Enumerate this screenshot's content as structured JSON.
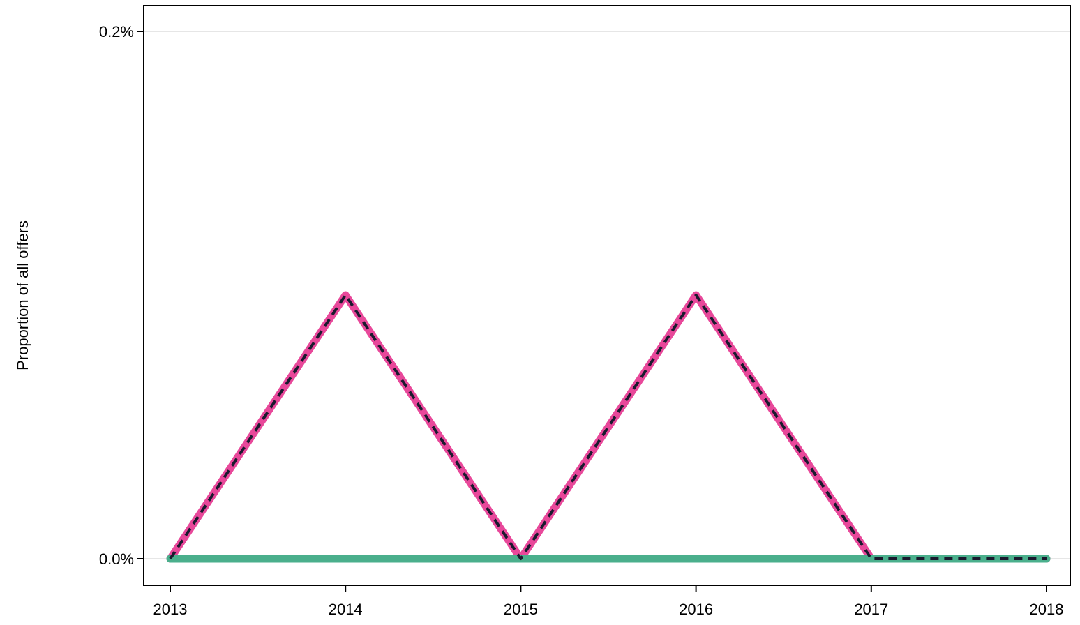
{
  "chart_data": {
    "type": "line",
    "title": "",
    "xlabel": "",
    "ylabel": "Proportion of all offers",
    "x": [
      2013,
      2014,
      2015,
      2016,
      2017,
      2018
    ],
    "x_tick_labels": [
      "2013",
      "2014",
      "2015",
      "2016",
      "2017",
      "2018"
    ],
    "ylim": [
      0,
      0.2
    ],
    "y_ticks": [
      0.0,
      0.2
    ],
    "y_tick_labels": [
      "0.0%",
      "0.2%"
    ],
    "grid": "horizontal",
    "legend": "none",
    "series": [
      {
        "values": [
          0,
          0.1,
          0,
          0.1,
          0,
          0
        ],
        "color": "#e8489a",
        "style": "solid"
      },
      {
        "values": [
          0,
          0,
          0,
          0,
          0,
          0
        ],
        "color": "#4aaf8c",
        "style": "solid"
      },
      {
        "values": [
          0,
          0.1,
          0,
          0.1,
          0,
          0
        ],
        "color": "#1a1a2e",
        "style": "dashed"
      }
    ]
  }
}
